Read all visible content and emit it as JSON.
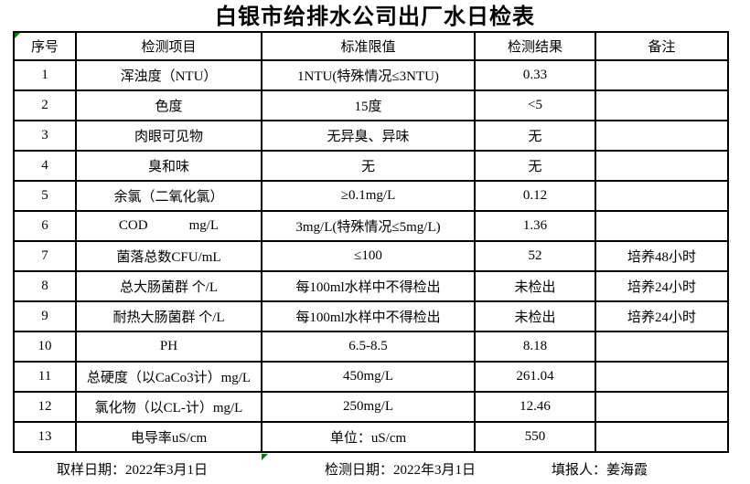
{
  "title": "白银市给排水公司出厂水日检表",
  "accent_colors": {
    "grid_border": "#000000",
    "indicator_green": "#008000"
  },
  "table": {
    "headers": [
      "序号",
      "检测项目",
      "标准限值",
      "检测结果",
      "备注"
    ],
    "rows": [
      {
        "no": "1",
        "item": "浑浊度（NTU）",
        "limit": "1NTU(特殊情况≤3NTU)",
        "result": "0.33",
        "note": ""
      },
      {
        "no": "2",
        "item": "色度",
        "limit": "15度",
        "result": "<5",
        "note": ""
      },
      {
        "no": "3",
        "item": "肉眼可见物",
        "limit": "无异臭、异味",
        "result": "无",
        "note": ""
      },
      {
        "no": "4",
        "item": "臭和味",
        "limit": "无",
        "result": "无",
        "note": ""
      },
      {
        "no": "5",
        "item": "余氯（二氧化氯）",
        "limit": "≥0.1mg/L",
        "result": "0.12",
        "note": ""
      },
      {
        "no": "6",
        "item": "COD            mg/L",
        "limit": "3mg/L(特殊情况≤5mg/L)",
        "result": "1.36",
        "note": ""
      },
      {
        "no": "7",
        "item": "菌落总数CFU/mL",
        "limit": "≤100",
        "result": "52",
        "note": "培养48小时"
      },
      {
        "no": "8",
        "item": "总大肠菌群 个/L",
        "limit": "每100ml水样中不得检出",
        "result": "未检出",
        "note": "培养24小时"
      },
      {
        "no": "9",
        "item": "耐热大肠菌群 个/L",
        "limit": "每100ml水样中不得检出",
        "result": "未检出",
        "note": "培养24小时"
      },
      {
        "no": "10",
        "item": "PH",
        "limit": "6.5-8.5",
        "result": "8.18",
        "note": ""
      },
      {
        "no": "11",
        "item": "总硬度（以CaCo3计）mg/L",
        "limit": "450mg/L",
        "result": "261.04",
        "note": ""
      },
      {
        "no": "12",
        "item": "氯化物（以CL-计）mg/L",
        "limit": "250mg/L",
        "result": "12.46",
        "note": ""
      },
      {
        "no": "13",
        "item": "电导率uS/cm",
        "limit": "单位：uS/cm",
        "result": "550",
        "note": ""
      }
    ]
  },
  "footer": {
    "sampling_date": "取样日期：2022年3月1日",
    "testing_date": "检测日期：2022年3月1日",
    "reporter": "填报人：姜海霞"
  }
}
